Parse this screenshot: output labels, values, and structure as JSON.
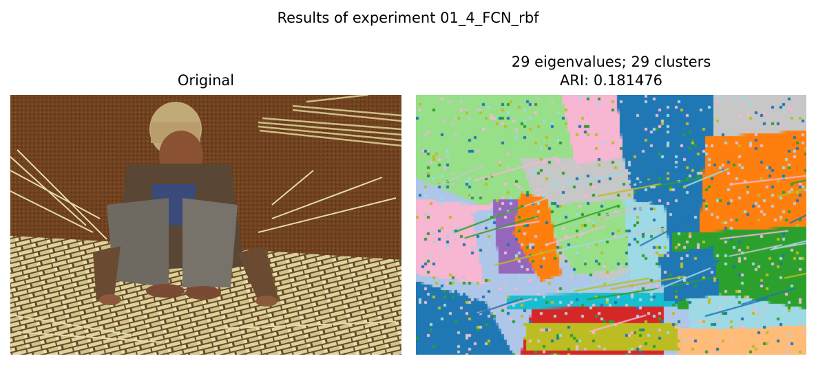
{
  "figure": {
    "suptitle": "Results of experiment 01_4_FCN_rbf"
  },
  "panels": {
    "original": {
      "title": "Original",
      "image": "photograph of a man in a knit cap squatting on dirt ground, weaving a mat of pale bamboo/reed strips; bundles of reeds lie in the background"
    },
    "segmentation": {
      "title_line1": "29 eigenvalues; 29 clusters",
      "title_line2": "ARI: 0.181476",
      "image": "pixelated spectral clustering label map of the same photo rendered in tab20 colors"
    }
  },
  "colors": {
    "dirt_ground": "#6b3f22",
    "reed_strips": "#d9cf9a",
    "cluster_blue": "#1f77b4",
    "cluster_light_green": "#98df8a",
    "cluster_orange": "#ff7f0e",
    "cluster_green": "#2ca02c",
    "cluster_red": "#d62728",
    "cluster_purple": "#9467bd",
    "cluster_gray": "#c7c7c7",
    "cluster_cyan": "#17becf",
    "cluster_light_cyan": "#9edae5",
    "cluster_pink": "#f7b6d2",
    "cluster_olive": "#bcbd22",
    "cluster_peach": "#ffbb78",
    "cluster_light_blue": "#aec7e8"
  }
}
